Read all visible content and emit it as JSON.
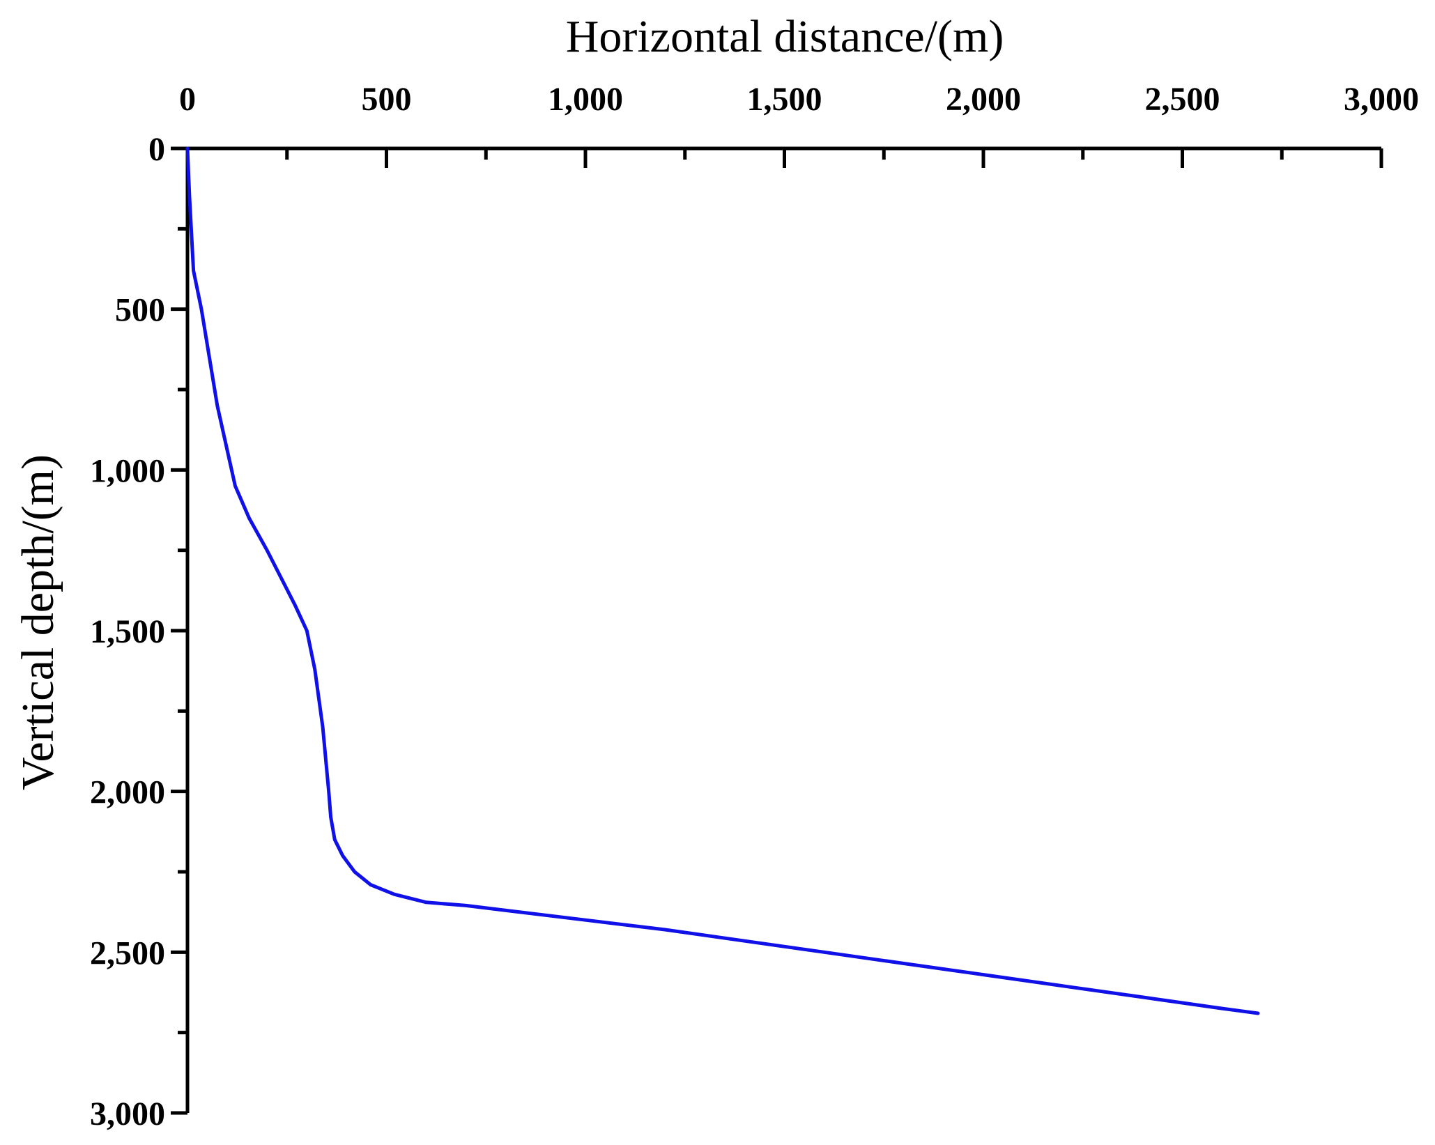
{
  "chart_data": {
    "type": "line",
    "xlabel": "Horizontal distance/(m)",
    "ylabel": "Vertical depth/(m)",
    "xlim": [
      0,
      3000
    ],
    "ylim": [
      0,
      3000
    ],
    "y_inverted": true,
    "x_axis_position": "top",
    "grid": false,
    "x_ticks": [
      0,
      500,
      1000,
      1500,
      2000,
      2500,
      3000
    ],
    "x_tick_labels": [
      "0",
      "500",
      "1,000",
      "1,500",
      "2,000",
      "2,500",
      "3,000"
    ],
    "y_ticks": [
      0,
      500,
      1000,
      1500,
      2000,
      2500,
      3000
    ],
    "y_tick_labels": [
      "0",
      "500",
      "1,000",
      "1,500",
      "2,000",
      "2,500",
      "3,000"
    ],
    "x_minor_step": 250,
    "y_minor_step": 250,
    "series": [
      {
        "color": "#1010e8",
        "x": [
          0,
          5,
          15,
          35,
          75,
          120,
          155,
          200,
          270,
          300,
          320,
          340,
          355,
          360,
          370,
          390,
          420,
          460,
          520,
          600,
          700,
          800,
          1000,
          1200,
          1400,
          1600,
          1800,
          2000,
          2200,
          2400,
          2600,
          2690
        ],
        "y": [
          0,
          150,
          380,
          500,
          800,
          1050,
          1150,
          1250,
          1420,
          1500,
          1620,
          1800,
          2000,
          2080,
          2150,
          2200,
          2250,
          2290,
          2320,
          2345,
          2355,
          2370,
          2400,
          2430,
          2465,
          2500,
          2535,
          2570,
          2605,
          2640,
          2675,
          2690
        ]
      }
    ]
  }
}
